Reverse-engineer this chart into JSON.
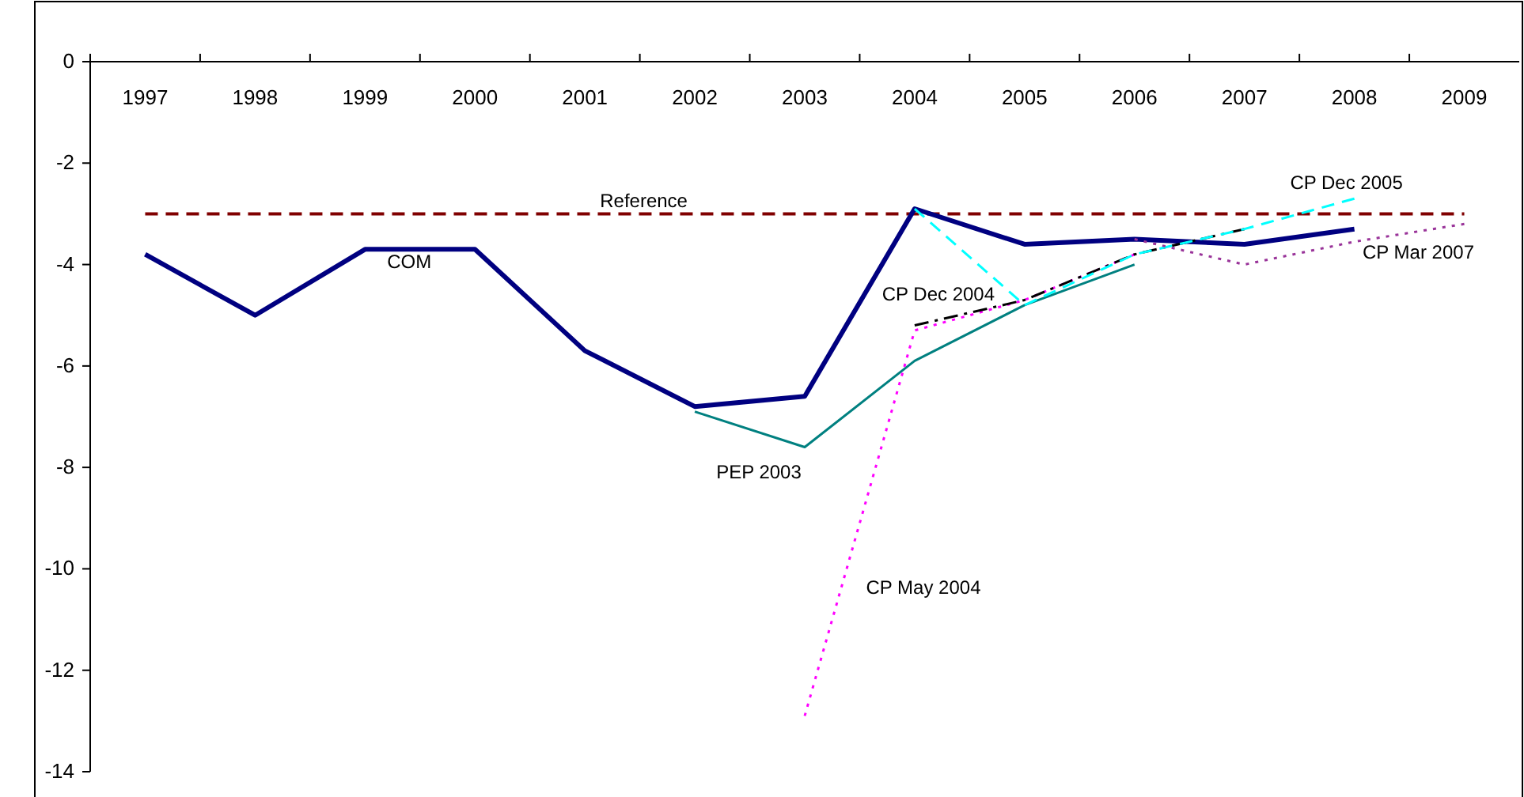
{
  "chart_data": {
    "type": "line",
    "categories": [
      "1997",
      "1998",
      "1999",
      "2000",
      "2001",
      "2002",
      "2003",
      "2004",
      "2005",
      "2006",
      "2007",
      "2008",
      "2009"
    ],
    "ylim": [
      -14,
      0
    ],
    "yticks": [
      0,
      -2,
      -4,
      -6,
      -8,
      -10,
      -12,
      -14
    ],
    "grid": false,
    "marker": "none",
    "series": [
      {
        "name": "COM",
        "color": "#000080",
        "line_style": "solid",
        "values": [
          -3.8,
          -5.0,
          -3.7,
          -3.7,
          -5.7,
          -6.8,
          -6.6,
          -2.9,
          -3.6,
          -3.5,
          -3.6,
          -3.3,
          null
        ]
      },
      {
        "name": "PEP 2003",
        "color": "#008080",
        "line_style": "solid",
        "values": [
          null,
          null,
          null,
          null,
          null,
          -6.9,
          -7.6,
          -5.9,
          -4.8,
          -4.0,
          null,
          null,
          null
        ]
      },
      {
        "name": "CP May 2004",
        "color": "#ff00ff",
        "line_style": "dotted",
        "values": [
          null,
          null,
          null,
          null,
          null,
          null,
          -12.9,
          -5.3,
          -4.7,
          -3.8,
          null,
          null,
          null
        ]
      },
      {
        "name": "CP Dec 2004",
        "color": "#000000",
        "line_style": "dashed",
        "values": [
          null,
          null,
          null,
          null,
          null,
          null,
          null,
          -5.2,
          -4.7,
          -3.8,
          -3.3,
          null,
          null
        ]
      },
      {
        "name": "CP Dec 2005",
        "color": "#00ffff",
        "line_style": "dashed",
        "values": [
          null,
          null,
          null,
          null,
          null,
          null,
          null,
          -2.9,
          -4.8,
          -3.8,
          -3.3,
          -2.7,
          null
        ]
      },
      {
        "name": "CP Mar 2007",
        "color": "#993399",
        "line_style": "dotted",
        "values": [
          null,
          null,
          null,
          null,
          null,
          null,
          null,
          null,
          null,
          -3.5,
          -4.0,
          -3.55,
          -3.2
        ]
      }
    ],
    "ref_lines": [
      {
        "axis": "y",
        "value": -3,
        "label": "Reference",
        "color": "#800000",
        "line_style": "dashed"
      }
    ]
  }
}
